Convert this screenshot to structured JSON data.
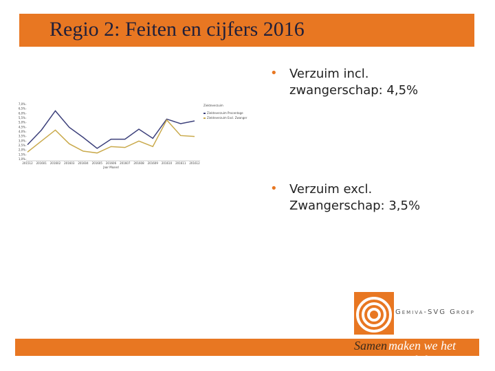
{
  "slide": {
    "title": "Regio 2: Feiten en cijfers 2016",
    "bullets": [
      "Verzuim incl. zwangerschap: 4,5%",
      "Verzuim excl. Zwangerschap: 3,5%"
    ],
    "logo": "Gemiva-SVG Groep",
    "footer_highlight": "Samen",
    "footer_rest": "maken we het verschil"
  },
  "chart_data": {
    "type": "line",
    "legend_title": "Ziekteverzuim",
    "xlabel": "Jaar Maand",
    "legend": "right",
    "categories": [
      "201512",
      "201601",
      "201602",
      "201603",
      "201604",
      "201605",
      "201606",
      "201607",
      "201608",
      "201609",
      "201610",
      "201611",
      "201612"
    ],
    "series": [
      {
        "name": "Ziekteverzuim Procentage",
        "color": "#3b3f7a",
        "values": [
          2.6,
          4.2,
          6.3,
          4.5,
          3.4,
          2.2,
          3.2,
          3.2,
          4.3,
          3.3,
          5.4,
          4.9,
          5.2
        ]
      },
      {
        "name": "Ziekteverzuim Excl. Zwanger",
        "color": "#c9a94a",
        "values": [
          1.8,
          3.0,
          4.2,
          2.7,
          1.9,
          1.7,
          2.4,
          2.3,
          3.0,
          2.4,
          5.3,
          3.6,
          3.5
        ]
      }
    ],
    "ylim": [
      1,
      7
    ],
    "yticks": [
      {
        "value": 7,
        "label": "7,0%"
      },
      {
        "value": 6.5,
        "label": "6,5%"
      },
      {
        "value": 6,
        "label": "6,0%"
      },
      {
        "value": 5.5,
        "label": "5,5%"
      },
      {
        "value": 5,
        "label": "5,0%"
      },
      {
        "value": 4.5,
        "label": "4,5%"
      },
      {
        "value": 4,
        "label": "4,0%"
      },
      {
        "value": 3.5,
        "label": "3,5%"
      },
      {
        "value": 3,
        "label": "3,0%"
      },
      {
        "value": 2.5,
        "label": "2,5%"
      },
      {
        "value": 2,
        "label": "2,0%"
      },
      {
        "value": 1.5,
        "label": "1,5%"
      },
      {
        "value": 1,
        "label": "1,0%"
      }
    ]
  }
}
